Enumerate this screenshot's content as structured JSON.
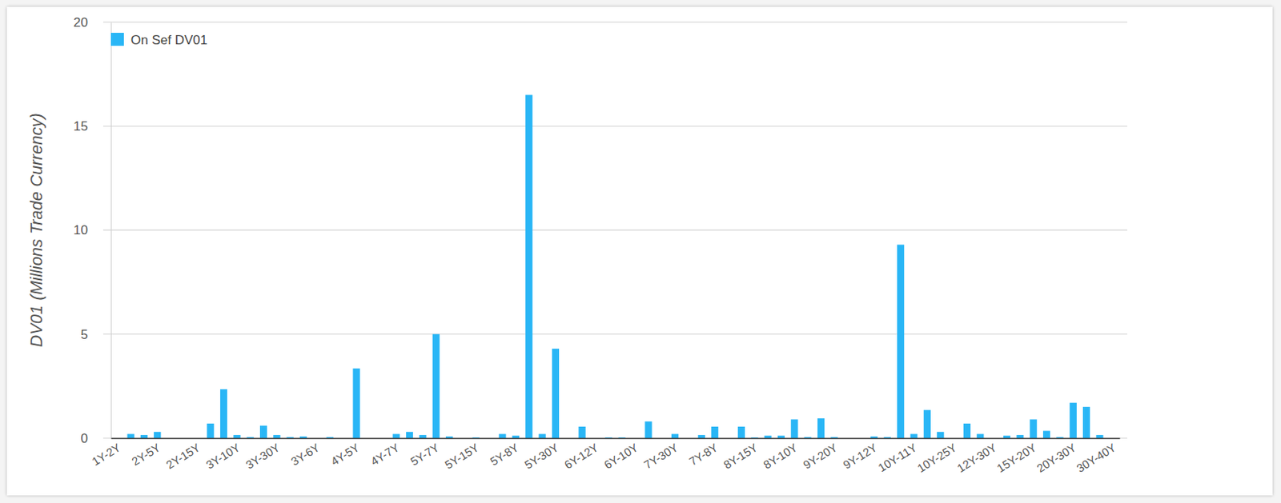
{
  "chart_data": {
    "type": "bar",
    "y_label": "DV01 (Millions Trade Currency)",
    "categories": [
      "1Y-2Y",
      null,
      null,
      "2Y-5Y",
      null,
      null,
      "2Y-15Y",
      null,
      null,
      "3Y-10Y",
      null,
      null,
      "3Y-30Y",
      null,
      null,
      "3Y-6Y",
      null,
      null,
      "4Y-5Y",
      null,
      null,
      "4Y-7Y",
      null,
      null,
      "5Y-7Y",
      null,
      null,
      "5Y-15Y",
      null,
      null,
      "5Y-8Y",
      null,
      null,
      "5Y-30Y",
      null,
      null,
      "6Y-12Y",
      null,
      null,
      "6Y-10Y",
      null,
      null,
      "7Y-30Y",
      null,
      null,
      "7Y-8Y",
      null,
      null,
      "8Y-15Y",
      null,
      null,
      "8Y-10Y",
      null,
      null,
      "9Y-20Y",
      null,
      null,
      "9Y-12Y",
      null,
      null,
      "10Y-11Y",
      null,
      null,
      "10Y-25Y",
      null,
      null,
      "12Y-30Y",
      null,
      null,
      "15Y-20Y",
      null,
      null,
      "20Y-30Y",
      null,
      null,
      "30Y-40Y"
    ],
    "series": [
      {
        "name": "On Sef DV01",
        "color": "#29b6f6",
        "values": [
          0,
          0.2,
          0.15,
          0.3,
          0,
          0,
          0,
          0.7,
          2.35,
          0.15,
          0.05,
          0.6,
          0.15,
          0.05,
          0.08,
          0,
          0.05,
          0,
          3.35,
          0,
          0,
          0.2,
          0.3,
          0.15,
          5.0,
          0.08,
          0,
          0.03,
          0,
          0.2,
          0.12,
          16.5,
          0.2,
          4.3,
          0,
          0.55,
          0,
          0.03,
          0.03,
          0,
          0.8,
          0,
          0.2,
          0,
          0.15,
          0.55,
          0,
          0.55,
          0.03,
          0.12,
          0.12,
          0.9,
          0.05,
          0.95,
          0.05,
          0,
          0,
          0.08,
          0.05,
          9.3,
          0.2,
          1.35,
          0.3,
          0,
          0.7,
          0.2,
          0,
          0.12,
          0.15,
          0.9,
          0.35,
          0.05,
          1.7,
          1.5,
          0.15,
          0
        ]
      }
    ],
    "ylim": [
      0,
      20
    ],
    "yticks": [
      0,
      5,
      10,
      15,
      20
    ],
    "grid": true,
    "legend": "top-left"
  }
}
